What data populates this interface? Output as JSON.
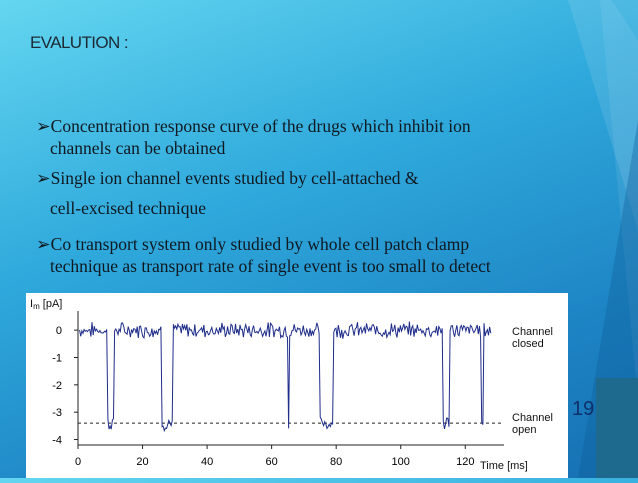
{
  "slide": {
    "title": "EVALUTION :",
    "page_number": "19",
    "bullets": [
      {
        "line1": "Concentration response curve of the drugs which inhibit ion",
        "line2": "channels can be obtained"
      },
      {
        "line1": "Single ion channel events studied by cell-attached &",
        "line2": "cell-excised technique"
      },
      {
        "line1": "Co transport system only studied by whole cell patch clamp",
        "line2": "technique as transport rate of single event is too small to detect"
      }
    ],
    "bullet_marker": "➢"
  },
  "chart_data": {
    "type": "line",
    "ylabel_main": "I",
    "ylabel_sub": "m",
    "ylabel_unit": " [pA]",
    "xlabel": "Time [ms]",
    "x_ticks": [
      "0",
      "20",
      "40",
      "60",
      "80",
      "100",
      "120"
    ],
    "y_ticks": [
      "0",
      "-1",
      "-2",
      "-3",
      "-4"
    ],
    "xlim": [
      0,
      132
    ],
    "ylim": [
      -4.2,
      0.7
    ],
    "closed_level": 0,
    "open_level": -3.4,
    "label_closed": [
      "Channel",
      "closed"
    ],
    "label_open": [
      "Channel",
      "open"
    ],
    "open_events": [
      [
        9,
        11
      ],
      [
        26,
        29.5
      ],
      [
        65,
        65.6
      ],
      [
        75,
        79
      ],
      [
        113,
        115
      ],
      [
        125,
        125.5
      ]
    ],
    "line_color": "#1f2d8a"
  }
}
